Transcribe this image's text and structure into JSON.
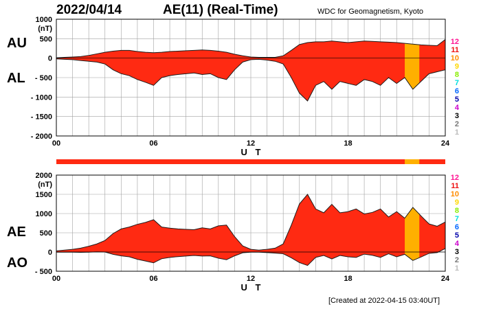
{
  "header": {
    "date": "2022/04/14",
    "title": "AE(11) (Real-Time)",
    "source": "WDC for Geomagnetism, Kyoto"
  },
  "footer": {
    "created": "[Created at 2022-04-15 03:40UT]"
  },
  "colors": {
    "fill": "#ff2a12",
    "outline": "#1a1a1a",
    "grid": "#a0a0a0",
    "reduced_stations": "#ffb000",
    "station_bar": "#ff2a12"
  },
  "legend": [
    {
      "label": "12",
      "color": "#ff1493"
    },
    {
      "label": "11",
      "color": "#ee1111"
    },
    {
      "label": "10",
      "color": "#ff8c00"
    },
    {
      "label": "9",
      "color": "#ffd700"
    },
    {
      "label": "8",
      "color": "#88ee00"
    },
    {
      "label": "7",
      "color": "#00dddd"
    },
    {
      "label": "6",
      "color": "#0066ff"
    },
    {
      "label": "5",
      "color": "#0000aa"
    },
    {
      "label": "4",
      "color": "#cc00cc"
    },
    {
      "label": "3",
      "color": "#000000"
    },
    {
      "label": "2",
      "color": "#777777"
    },
    {
      "label": "1",
      "color": "#bbbbbb"
    }
  ],
  "chart_data": [
    {
      "type": "area",
      "panel": "top",
      "series_labels": [
        "AU",
        "AL"
      ],
      "unit_label": "(nT)",
      "xlabel": "U T",
      "x_ticks": [
        "00",
        "06",
        "12",
        "18",
        "24"
      ],
      "xlim": [
        0,
        24
      ],
      "ylim": [
        -2000,
        1000
      ],
      "y_ticks": [
        "1000",
        "500",
        "0",
        "- 500",
        "- 1000",
        "- 1500",
        "- 2000"
      ],
      "grid": true,
      "x_hours": [
        0,
        0.5,
        1,
        1.5,
        2,
        2.5,
        3,
        3.5,
        4,
        4.5,
        5,
        5.5,
        6,
        6.5,
        7,
        7.5,
        8,
        8.5,
        9,
        9.5,
        10,
        10.5,
        11,
        11.5,
        12,
        12.5,
        13,
        13.5,
        14,
        14.5,
        15,
        15.5,
        16,
        16.5,
        17,
        17.5,
        18,
        18.5,
        19,
        19.5,
        20,
        20.5,
        21,
        21.5,
        22,
        22.5,
        23,
        23.5,
        24
      ],
      "series": [
        {
          "name": "AU",
          "values": [
            10,
            20,
            30,
            40,
            70,
            110,
            150,
            180,
            200,
            200,
            170,
            150,
            140,
            150,
            170,
            180,
            190,
            200,
            210,
            200,
            180,
            150,
            100,
            60,
            30,
            20,
            20,
            20,
            60,
            200,
            350,
            400,
            420,
            420,
            440,
            420,
            400,
            420,
            440,
            430,
            420,
            410,
            400,
            380,
            360,
            340,
            330,
            320,
            480
          ]
        },
        {
          "name": "AL",
          "values": [
            -20,
            -30,
            -40,
            -60,
            -80,
            -100,
            -150,
            -300,
            -400,
            -450,
            -550,
            -620,
            -700,
            -500,
            -450,
            -420,
            -400,
            -380,
            -420,
            -400,
            -500,
            -550,
            -300,
            -100,
            -40,
            -30,
            -50,
            -80,
            -150,
            -500,
            -900,
            -1100,
            -700,
            -600,
            -800,
            -600,
            -650,
            -700,
            -550,
            -600,
            -700,
            -500,
            -650,
            -500,
            -800,
            -600,
            -400,
            -350,
            -300
          ]
        }
      ]
    },
    {
      "type": "area",
      "panel": "bottom",
      "series_labels": [
        "AE",
        "AO"
      ],
      "unit_label": "(nT)",
      "xlabel": "U T",
      "x_ticks": [
        "00",
        "06",
        "12",
        "18",
        "24"
      ],
      "xlim": [
        0,
        24
      ],
      "ylim": [
        -500,
        2000
      ],
      "y_ticks": [
        "2000",
        "1500",
        "1000",
        "500",
        "0",
        "- 500"
      ],
      "grid": true,
      "x_hours": [
        0,
        0.5,
        1,
        1.5,
        2,
        2.5,
        3,
        3.5,
        4,
        4.5,
        5,
        5.5,
        6,
        6.5,
        7,
        7.5,
        8,
        8.5,
        9,
        9.5,
        10,
        10.5,
        11,
        11.5,
        12,
        12.5,
        13,
        13.5,
        14,
        14.5,
        15,
        15.5,
        16,
        16.5,
        17,
        17.5,
        18,
        18.5,
        19,
        19.5,
        20,
        20.5,
        21,
        21.5,
        22,
        22.5,
        23,
        23.5,
        24
      ],
      "series": [
        {
          "name": "AE",
          "values": [
            30,
            50,
            70,
            100,
            150,
            210,
            300,
            480,
            600,
            650,
            720,
            770,
            840,
            650,
            620,
            600,
            590,
            580,
            630,
            600,
            680,
            700,
            400,
            160,
            70,
            50,
            70,
            100,
            210,
            700,
            1250,
            1500,
            1120,
            1020,
            1240,
            1020,
            1050,
            1120,
            990,
            1030,
            1120,
            910,
            1050,
            880,
            1160,
            940,
            730,
            670,
            780
          ]
        },
        {
          "name": "AO",
          "values": [
            -5,
            -5,
            -5,
            -10,
            -5,
            5,
            0,
            -60,
            -100,
            -125,
            -190,
            -235,
            -280,
            -175,
            -140,
            -120,
            -105,
            -90,
            -105,
            -100,
            -160,
            -200,
            -100,
            -20,
            -5,
            -5,
            -15,
            -30,
            -45,
            -150,
            -275,
            -350,
            -140,
            -90,
            -180,
            -90,
            -125,
            -140,
            -55,
            -85,
            -140,
            -45,
            -125,
            -60,
            -220,
            -130,
            -35,
            -15,
            90
          ]
        }
      ]
    }
  ]
}
